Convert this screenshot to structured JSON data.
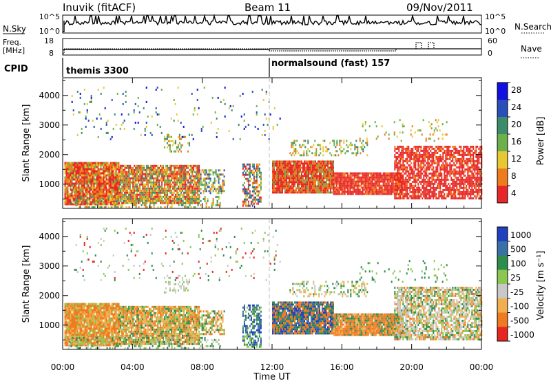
{
  "header": {
    "station": "Inuvik (fitACF)",
    "beam": "Beam 11",
    "date": "09/Nov/2011"
  },
  "nsky": {
    "left_label": "N.Sky",
    "left_ticks": [
      "10^5",
      "10^0"
    ],
    "right_label": "N.Search",
    "right_ticks": [
      "10^5",
      "10^0"
    ]
  },
  "freq": {
    "left_label_1": "Freq.",
    "left_label_2": "[MHz]",
    "left_ticks": [
      "18",
      "8"
    ],
    "right_label": "Nave",
    "right_ticks": [
      "60",
      "0"
    ]
  },
  "cpid": {
    "label": "CPID",
    "segments": [
      {
        "name": "themis 3300",
        "start_hour": 0
      },
      {
        "name": "normalsound (fast) 157",
        "start_hour": 12
      }
    ]
  },
  "chart_data": [
    {
      "type": "heatmap",
      "title": "",
      "xlabel": "Time UT",
      "ylabel": "Slant Range [km]",
      "x_ticks": [
        "00:00",
        "04:00",
        "08:00",
        "12:00",
        "16:00",
        "20:00",
        "00:00"
      ],
      "xlim_hours": [
        0,
        24
      ],
      "y_ticks": [
        1000,
        2000,
        3000,
        4000
      ],
      "ylim": [
        180,
        4600
      ],
      "colorbar": {
        "label": "Power [dB]",
        "ticks": [
          "4",
          "8",
          "12",
          "16",
          "20",
          "24",
          "28"
        ],
        "colors": [
          "#1010e0",
          "#2a4fb8",
          "#3c8c6c",
          "#6cb04c",
          "#e8c832",
          "#ee7c1c",
          "#e82828"
        ]
      },
      "scatter_bands": [
        {
          "h0": 0.1,
          "h1": 3.2,
          "r0": 350,
          "r1": 1750,
          "density": 0.95,
          "palette": [
            6,
            6,
            6,
            5,
            5,
            4,
            3
          ]
        },
        {
          "h0": 3.2,
          "h1": 7.8,
          "r0": 350,
          "r1": 1650,
          "density": 0.9,
          "palette": [
            6,
            6,
            5,
            5,
            4,
            3,
            2
          ]
        },
        {
          "h0": 7.8,
          "h1": 9.3,
          "r0": 700,
          "r1": 1500,
          "density": 0.55,
          "palette": [
            5,
            4,
            3,
            2,
            1
          ]
        },
        {
          "h0": 10.3,
          "h1": 11.4,
          "r0": 300,
          "r1": 1700,
          "density": 0.6,
          "palette": [
            6,
            5,
            4,
            3,
            2,
            1
          ]
        },
        {
          "h0": 12.0,
          "h1": 15.5,
          "r0": 700,
          "r1": 1800,
          "density": 0.95,
          "palette": [
            6,
            6,
            6,
            5,
            5,
            3
          ]
        },
        {
          "h0": 15.5,
          "h1": 19.5,
          "r0": 650,
          "r1": 1400,
          "density": 0.95,
          "palette": [
            6,
            6,
            6,
            5
          ]
        },
        {
          "h0": 19.0,
          "h1": 24.0,
          "r0": 500,
          "r1": 2300,
          "density": 0.75,
          "palette": [
            6,
            6,
            6,
            6,
            5
          ]
        },
        {
          "h0": 5.8,
          "h1": 7.3,
          "r0": 2100,
          "r1": 2700,
          "density": 0.3,
          "palette": [
            4,
            3,
            2,
            5
          ]
        },
        {
          "h0": 13.0,
          "h1": 17.5,
          "r0": 2000,
          "r1": 2500,
          "density": 0.3,
          "palette": [
            4,
            3,
            5,
            2
          ]
        },
        {
          "h0": 0.5,
          "h1": 12.5,
          "r0": 2500,
          "r1": 4300,
          "density": 0.04,
          "palette": [
            0,
            1,
            2,
            3,
            4
          ]
        },
        {
          "h0": 0.3,
          "h1": 9.0,
          "r0": 200,
          "r1": 600,
          "density": 0.3,
          "palette": [
            5,
            4,
            3,
            2
          ]
        },
        {
          "h0": 17.0,
          "h1": 22.0,
          "r0": 2500,
          "r1": 3200,
          "density": 0.1,
          "palette": [
            5,
            4,
            3
          ]
        }
      ]
    },
    {
      "type": "heatmap",
      "title": "",
      "xlabel": "Time UT",
      "ylabel": "Slant Range [km]",
      "x_ticks": [
        "00:00",
        "04:00",
        "08:00",
        "12:00",
        "16:00",
        "20:00",
        "00:00"
      ],
      "xlim_hours": [
        0,
        24
      ],
      "y_ticks": [
        1000,
        2000,
        3000,
        4000
      ],
      "ylim": [
        180,
        4600
      ],
      "colorbar": {
        "label": "Velocity [m s⁻¹]",
        "ticks": [
          "1000",
          "500",
          "100",
          "25",
          "-25",
          "-100",
          "-500",
          "-1000"
        ],
        "colors": [
          "#2040c0",
          "#3a70a8",
          "#2e8c4c",
          "#8cc850",
          "#c8c8c8",
          "#f0b050",
          "#f07a20",
          "#e82820"
        ]
      },
      "scatter_bands": [
        {
          "h0": 0.1,
          "h1": 3.2,
          "r0": 350,
          "r1": 1750,
          "density": 0.95,
          "palette": [
            6,
            6,
            6,
            5,
            5,
            3
          ]
        },
        {
          "h0": 3.2,
          "h1": 7.8,
          "r0": 350,
          "r1": 1650,
          "density": 0.9,
          "palette": [
            6,
            6,
            5,
            5,
            3,
            2
          ]
        },
        {
          "h0": 7.8,
          "h1": 9.3,
          "r0": 700,
          "r1": 1500,
          "density": 0.55,
          "palette": [
            6,
            5,
            3,
            2
          ]
        },
        {
          "h0": 10.3,
          "h1": 11.4,
          "r0": 300,
          "r1": 1700,
          "density": 0.6,
          "palette": [
            0,
            1,
            2,
            3
          ]
        },
        {
          "h0": 12.0,
          "h1": 15.5,
          "r0": 700,
          "r1": 1800,
          "density": 0.95,
          "palette": [
            0,
            1,
            2,
            6,
            6
          ]
        },
        {
          "h0": 15.5,
          "h1": 19.5,
          "r0": 650,
          "r1": 1400,
          "density": 0.95,
          "palette": [
            6,
            6,
            5,
            6,
            2
          ]
        },
        {
          "h0": 19.0,
          "h1": 24.0,
          "r0": 500,
          "r1": 2300,
          "density": 0.75,
          "palette": [
            4,
            4,
            5,
            6,
            2,
            3
          ]
        },
        {
          "h0": 5.8,
          "h1": 7.3,
          "r0": 2100,
          "r1": 2700,
          "density": 0.3,
          "palette": [
            4,
            4,
            3
          ]
        },
        {
          "h0": 13.0,
          "h1": 17.5,
          "r0": 2000,
          "r1": 2500,
          "density": 0.3,
          "palette": [
            3,
            2,
            5,
            4
          ]
        },
        {
          "h0": 0.5,
          "h1": 12.5,
          "r0": 2500,
          "r1": 4300,
          "density": 0.04,
          "palette": [
            2,
            3,
            4,
            7
          ]
        },
        {
          "h0": 0.3,
          "h1": 9.0,
          "r0": 200,
          "r1": 600,
          "density": 0.3,
          "palette": [
            2,
            3,
            4
          ]
        },
        {
          "h0": 17.0,
          "h1": 22.0,
          "r0": 2500,
          "r1": 3200,
          "density": 0.1,
          "palette": [
            2,
            3
          ]
        }
      ]
    }
  ]
}
